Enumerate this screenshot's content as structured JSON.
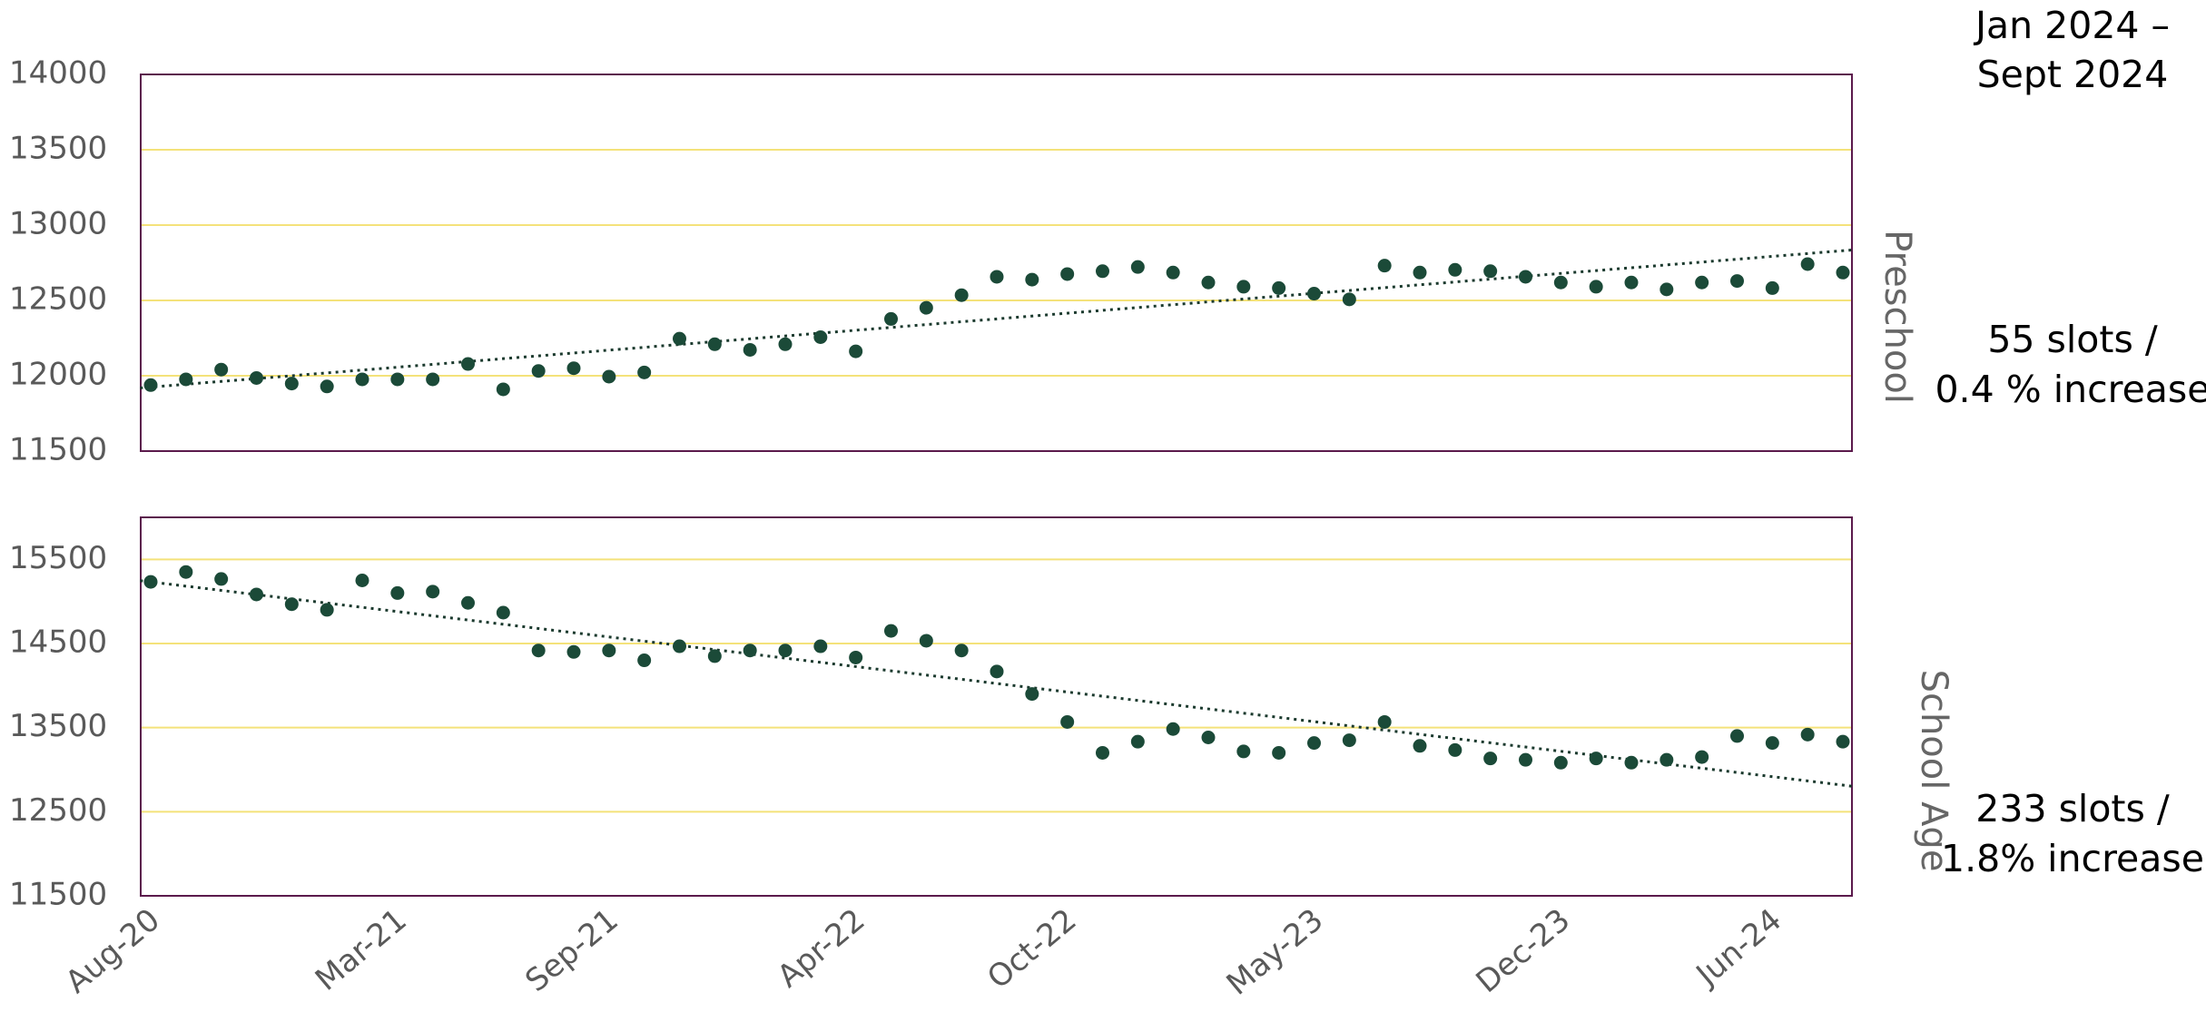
{
  "categories": [
    "Aug-20",
    null,
    null,
    null,
    null,
    null,
    null,
    "Mar-21",
    null,
    null,
    null,
    null,
    null,
    "Sep-21",
    null,
    null,
    null,
    null,
    null,
    null,
    "Apr-22",
    null,
    null,
    null,
    null,
    null,
    "Oct-22",
    null,
    null,
    null,
    null,
    null,
    null,
    "May-23",
    null,
    null,
    null,
    null,
    null,
    null,
    "Dec-23",
    null,
    null,
    null,
    null,
    null,
    "Jun-24",
    null,
    null
  ],
  "header": {
    "lines": [
      "Jan 2024 –",
      "Sept 2024"
    ]
  },
  "chart_data": [
    {
      "type": "scatter",
      "label": "Preschool",
      "color": "#1b4a38",
      "trendline": true,
      "values": [
        11938,
        11976,
        12041,
        11985,
        11948,
        11929,
        11976,
        11976,
        11976,
        12078,
        11910,
        12032,
        12050,
        11994,
        12022,
        12246,
        12209,
        12172,
        12209,
        12256,
        12162,
        12377,
        12451,
        12535,
        12657,
        12638,
        12675,
        12694,
        12722,
        12685,
        12619,
        12591,
        12582,
        12545,
        12507,
        12731,
        12685,
        12703,
        12694,
        12657,
        12619,
        12591,
        12619,
        12573,
        12619,
        12629,
        12582,
        12741,
        12685
      ],
      "ylim": [
        11500,
        14000
      ],
      "yticks": [
        11500,
        12000,
        12500,
        13000,
        13500,
        14000
      ],
      "grid": true,
      "annotation": [
        "55 slots /",
        "0.4 % increase"
      ]
    },
    {
      "type": "scatter",
      "label": "School Age",
      "color": "#1b4a38",
      "trendline": true,
      "values": [
        15233,
        15350,
        15267,
        15083,
        14967,
        14900,
        15250,
        15100,
        15117,
        14983,
        14867,
        14417,
        14400,
        14417,
        14300,
        14467,
        14350,
        14417,
        14417,
        14467,
        14333,
        14650,
        14533,
        14417,
        14167,
        13900,
        13567,
        13200,
        13333,
        13483,
        13383,
        13217,
        13200,
        13317,
        13350,
        13567,
        13283,
        13233,
        13133,
        13117,
        13083,
        13133,
        13083,
        13117,
        13150,
        13400,
        13317,
        13417,
        13333
      ],
      "ylim": [
        11500,
        16000
      ],
      "yticks": [
        11500,
        12500,
        13500,
        14500,
        15500
      ],
      "grid": true,
      "annotation": [
        "233 slots /",
        "1.8% increase"
      ]
    }
  ]
}
